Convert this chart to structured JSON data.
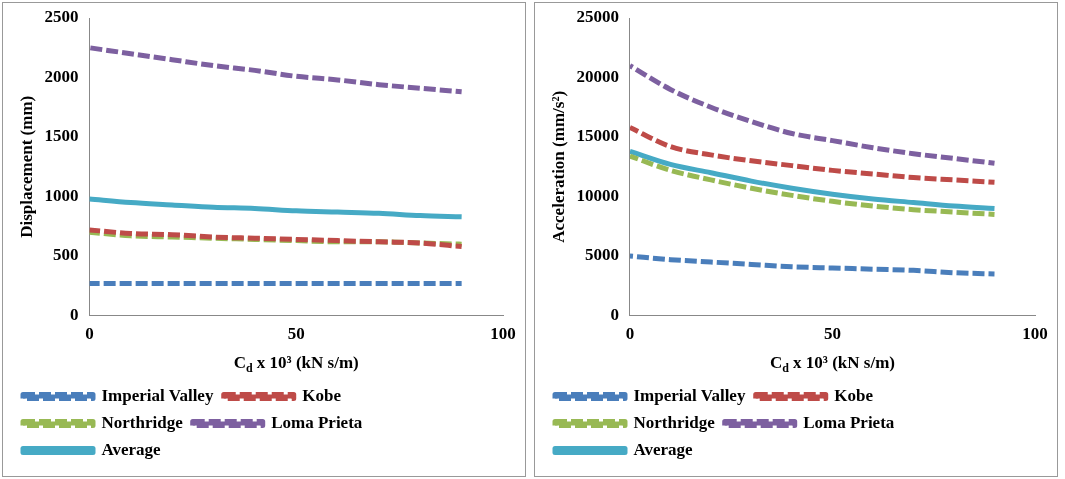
{
  "chart_data": [
    {
      "type": "line",
      "xlabel": "C$_{d}$ x 10³ (kN s/m)",
      "ylabel": "Displacement (mm)",
      "x": [
        0,
        10,
        20,
        30,
        40,
        50,
        60,
        70,
        80,
        90
      ],
      "xlim": [
        0,
        100
      ],
      "xticks": [
        0,
        50,
        100
      ],
      "ylim": [
        0,
        2500
      ],
      "yticks": [
        0,
        500,
        1000,
        1500,
        2000,
        2500
      ],
      "legend": "bottom",
      "grid": false,
      "marker": "none",
      "series": [
        {
          "name": "Imperial Valley",
          "color": "#4a7ebb",
          "line_style": "dashed",
          "values": [
            270,
            270,
            270,
            270,
            270,
            270,
            270,
            270,
            270,
            270
          ]
        },
        {
          "name": "Kobe",
          "color": "#be4b48",
          "line_style": "dashed",
          "values": [
            720,
            690,
            680,
            660,
            650,
            640,
            630,
            620,
            610,
            580
          ]
        },
        {
          "name": "Northridge",
          "color": "#98b954",
          "line_style": "dashed",
          "values": [
            700,
            670,
            660,
            650,
            640,
            630,
            620,
            620,
            610,
            600
          ]
        },
        {
          "name": "Loma Prieta",
          "color": "#7d60a0",
          "line_style": "dashed",
          "values": [
            2250,
            2200,
            2150,
            2100,
            2060,
            2010,
            1980,
            1940,
            1910,
            1880
          ]
        },
        {
          "name": "Average",
          "color": "#46aac5",
          "line_style": "solid",
          "values": [
            980,
            950,
            930,
            910,
            900,
            880,
            870,
            860,
            840,
            830
          ]
        }
      ]
    },
    {
      "type": "line",
      "xlabel": "C$_{d}$ x 10³ (kN s/m)",
      "ylabel": "Acceleration (mm/s²)",
      "x": [
        0,
        10,
        20,
        30,
        40,
        50,
        60,
        70,
        80,
        90
      ],
      "xlim": [
        0,
        100
      ],
      "xticks": [
        0,
        50,
        100
      ],
      "ylim": [
        0,
        25000
      ],
      "yticks": [
        0,
        5000,
        10000,
        15000,
        20000,
        25000
      ],
      "legend": "bottom",
      "grid": false,
      "marker": "none",
      "series": [
        {
          "name": "Imperial Valley",
          "color": "#4a7ebb",
          "line_style": "dashed",
          "values": [
            5000,
            4700,
            4500,
            4300,
            4100,
            4000,
            3900,
            3800,
            3600,
            3500
          ]
        },
        {
          "name": "Kobe",
          "color": "#be4b48",
          "line_style": "dashed",
          "values": [
            15800,
            14200,
            13500,
            13000,
            12600,
            12200,
            11900,
            11600,
            11400,
            11200
          ]
        },
        {
          "name": "Northridge",
          "color": "#98b954",
          "line_style": "dashed",
          "values": [
            13400,
            12200,
            11400,
            10700,
            10100,
            9600,
            9200,
            8900,
            8700,
            8500
          ]
        },
        {
          "name": "Loma Prieta",
          "color": "#7d60a0",
          "line_style": "dashed",
          "values": [
            21000,
            19000,
            17500,
            16300,
            15300,
            14700,
            14100,
            13600,
            13200,
            12800
          ]
        },
        {
          "name": "Average",
          "color": "#46aac5",
          "line_style": "solid",
          "values": [
            13800,
            12700,
            12000,
            11300,
            10700,
            10200,
            9800,
            9500,
            9200,
            9000
          ]
        }
      ]
    }
  ]
}
